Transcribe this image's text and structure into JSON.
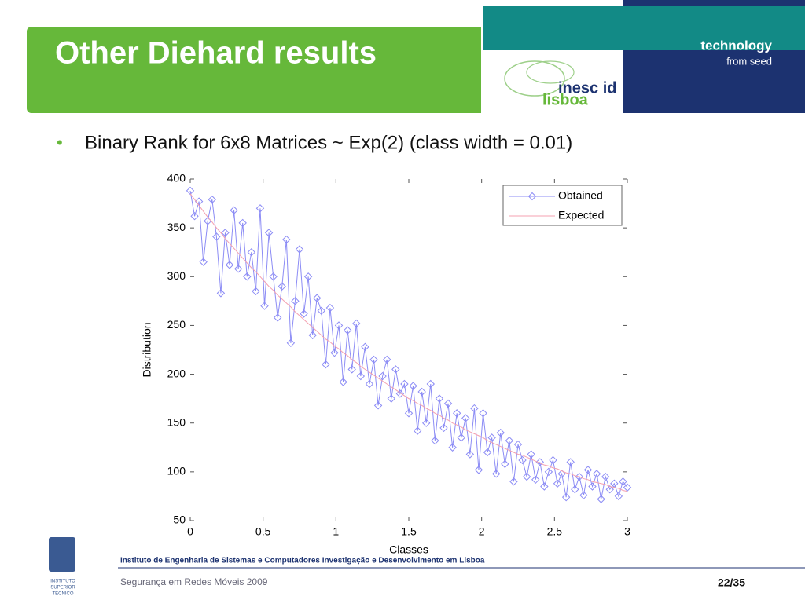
{
  "header": {
    "title": "Other Diehard results",
    "tagline": "technology",
    "subtagline": "from seed",
    "logo_top": "inesc id",
    "logo_bottom": "lisboa"
  },
  "bullet": "Binary Rank for 6x8 Matrices ~ Exp(2) (class width = 0.01)",
  "footer": {
    "institute": "Instituto de Engenharia de Sistemas e Computadores Investigação e Desenvolvimento em Lisboa",
    "course": "Segurança em Redes Móveis 2009",
    "page": "22/35",
    "ist_lines": [
      "INSTITUTO",
      "SUPERIOR",
      "TÉCNICO"
    ]
  },
  "chart_data": {
    "type": "line",
    "xlabel": "Classes",
    "ylabel": "Distribution",
    "legend": "upper right",
    "x": [
      0,
      0.03,
      0.06,
      0.09,
      0.12,
      0.15,
      0.18,
      0.21,
      0.24,
      0.27,
      0.3,
      0.33,
      0.36,
      0.39,
      0.42,
      0.45,
      0.48,
      0.51,
      0.54,
      0.57,
      0.6,
      0.63,
      0.66,
      0.69,
      0.72,
      0.75,
      0.78,
      0.81,
      0.84,
      0.87,
      0.9,
      0.93,
      0.96,
      0.99,
      1.02,
      1.05,
      1.08,
      1.11,
      1.14,
      1.17,
      1.2,
      1.23,
      1.26,
      1.29,
      1.32,
      1.35,
      1.38,
      1.41,
      1.44,
      1.47,
      1.5,
      1.53,
      1.56,
      1.59,
      1.62,
      1.65,
      1.68,
      1.71,
      1.74,
      1.77,
      1.8,
      1.83,
      1.86,
      1.89,
      1.92,
      1.95,
      1.98,
      2.01,
      2.04,
      2.07,
      2.1,
      2.13,
      2.16,
      2.19,
      2.22,
      2.25,
      2.28,
      2.31,
      2.34,
      2.37,
      2.4,
      2.43,
      2.46,
      2.49,
      2.52,
      2.55,
      2.58,
      2.61,
      2.64,
      2.67,
      2.7,
      2.73,
      2.76,
      2.79,
      2.82,
      2.85,
      2.88,
      2.91,
      2.94,
      2.97,
      3
    ],
    "series": [
      {
        "name": "Obtained",
        "color": "#8c8cf5",
        "marker": "diamond",
        "values": [
          388,
          362,
          377,
          315,
          357,
          379,
          341,
          283,
          345,
          312,
          368,
          308,
          355,
          300,
          325,
          285,
          370,
          270,
          345,
          300,
          258,
          290,
          338,
          232,
          275,
          328,
          262,
          300,
          240,
          278,
          265,
          210,
          268,
          222,
          250,
          192,
          245,
          205,
          252,
          198,
          228,
          190,
          215,
          168,
          198,
          215,
          175,
          205,
          180,
          190,
          160,
          188,
          142,
          182,
          150,
          190,
          132,
          175,
          145,
          170,
          125,
          160,
          135,
          155,
          118,
          165,
          102,
          160,
          120,
          135,
          98,
          140,
          108,
          132,
          90,
          128,
          112,
          95,
          118,
          92,
          110,
          85,
          100,
          112,
          88,
          98,
          74,
          110,
          82,
          95,
          76,
          102,
          85,
          98,
          72,
          95,
          82,
          88,
          75,
          90,
          84
        ]
      },
      {
        "name": "Expected",
        "color": "#f4a0b0",
        "marker": null,
        "values": [
          385,
          379,
          373,
          367,
          361,
          356,
          350,
          345,
          339,
          334,
          329,
          324,
          319,
          314,
          309,
          305,
          300,
          295,
          290,
          286,
          281,
          277,
          273,
          269,
          264,
          260,
          256,
          252,
          248,
          244,
          240,
          236,
          233,
          229,
          226,
          222,
          219,
          215,
          212,
          208,
          205,
          202,
          199,
          196,
          193,
          190,
          187,
          184,
          181,
          178,
          175,
          173,
          170,
          168,
          165,
          163,
          160,
          158,
          155,
          153,
          150,
          148,
          146,
          143,
          141,
          139,
          137,
          135,
          132,
          130,
          128,
          126,
          124,
          122,
          120,
          118,
          117,
          115,
          113,
          111,
          109,
          107,
          106,
          104,
          103,
          101,
          99,
          98,
          96,
          95,
          93,
          92,
          90,
          89,
          88,
          87,
          85,
          84,
          83,
          81,
          80
        ]
      }
    ],
    "xlim": [
      0,
      3
    ],
    "ylim": [
      50,
      400
    ],
    "xticks": [
      0,
      0.5,
      1,
      1.5,
      2,
      2.5,
      3
    ],
    "yticks": [
      50,
      100,
      150,
      200,
      250,
      300,
      350,
      400
    ]
  }
}
